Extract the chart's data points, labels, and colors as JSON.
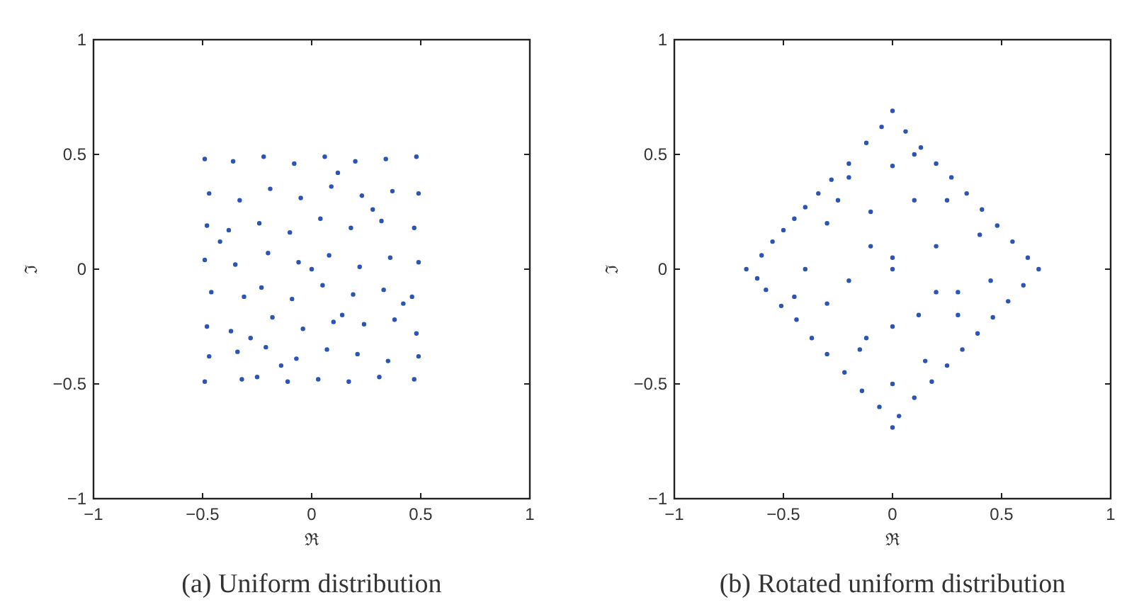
{
  "chart_data": [
    {
      "type": "scatter",
      "title": "(a) Uniform distribution",
      "xlabel": "ℜ",
      "ylabel": "ℑ",
      "marker": "circle",
      "grid": false,
      "xlim": [
        -1,
        1
      ],
      "ylim": [
        -1,
        1
      ],
      "xticks": [
        -1,
        -0.5,
        0,
        0.5,
        1
      ],
      "yticks": [
        -1,
        -0.5,
        0,
        0.5,
        1
      ],
      "series": [
        {
          "color": "#2b55b5",
          "x": [
            -0.49,
            -0.47,
            -0.48,
            -0.49,
            -0.46,
            -0.48,
            -0.47,
            -0.49,
            -0.36,
            -0.33,
            -0.38,
            -0.35,
            -0.31,
            -0.37,
            -0.34,
            -0.32,
            -0.22,
            -0.19,
            -0.24,
            -0.2,
            -0.23,
            -0.18,
            -0.21,
            -0.25,
            -0.08,
            -0.05,
            -0.1,
            -0.06,
            -0.09,
            -0.04,
            -0.07,
            -0.11,
            0.06,
            0.09,
            0.04,
            0.08,
            0.05,
            0.1,
            0.07,
            0.03,
            0.2,
            0.23,
            0.18,
            0.22,
            0.19,
            0.24,
            0.21,
            0.17,
            0.34,
            0.37,
            0.32,
            0.36,
            0.33,
            0.38,
            0.35,
            0.31,
            0.48,
            0.49,
            0.47,
            0.49,
            0.46,
            0.48,
            0.49,
            0.47,
            0.0,
            0.12,
            -0.14,
            0.28,
            -0.28,
            0.42,
            -0.42,
            0.14
          ],
          "values": [
            0.48,
            0.33,
            0.19,
            0.04,
            -0.1,
            -0.25,
            -0.38,
            -0.49,
            0.47,
            0.3,
            0.17,
            0.02,
            -0.12,
            -0.27,
            -0.36,
            -0.48,
            0.49,
            0.35,
            0.2,
            0.07,
            -0.08,
            -0.21,
            -0.34,
            -0.47,
            0.46,
            0.31,
            0.16,
            0.03,
            -0.13,
            -0.26,
            -0.39,
            -0.49,
            0.49,
            0.36,
            0.22,
            0.06,
            -0.07,
            -0.23,
            -0.35,
            -0.48,
            0.47,
            0.32,
            0.18,
            0.01,
            -0.11,
            -0.24,
            -0.37,
            -0.49,
            0.48,
            0.34,
            0.21,
            0.05,
            -0.09,
            -0.22,
            -0.4,
            -0.47,
            0.49,
            0.33,
            0.18,
            0.03,
            -0.12,
            -0.28,
            -0.38,
            -0.48,
            0.0,
            0.42,
            -0.42,
            0.26,
            -0.3,
            -0.15,
            0.12,
            -0.2
          ]
        }
      ]
    },
    {
      "type": "scatter",
      "title": "(b) Rotated uniform distribution",
      "xlabel": "ℜ",
      "ylabel": "ℑ",
      "marker": "circle",
      "grid": false,
      "xlim": [
        -1,
        1
      ],
      "ylim": [
        -1,
        1
      ],
      "xticks": [
        -1,
        -0.5,
        0,
        0.5,
        1
      ],
      "yticks": [
        -1,
        -0.5,
        0,
        0.5,
        1
      ],
      "series": [
        {
          "color": "#2b55b5",
          "x": [
            -0.67,
            -0.6,
            -0.55,
            -0.5,
            -0.45,
            -0.4,
            -0.34,
            -0.28,
            -0.2,
            -0.12,
            -0.05,
            0.0,
            0.06,
            0.13,
            0.2,
            0.27,
            0.34,
            0.41,
            0.48,
            0.55,
            0.62,
            0.67,
            0.6,
            0.53,
            0.46,
            0.39,
            0.32,
            0.25,
            0.18,
            0.1,
            0.03,
            0.0,
            -0.06,
            -0.14,
            -0.22,
            -0.3,
            -0.37,
            -0.44,
            -0.51,
            -0.58,
            -0.62,
            -0.4,
            -0.3,
            -0.2,
            -0.1,
            0.0,
            0.1,
            0.2,
            0.3,
            0.4,
            -0.3,
            -0.15,
            0.0,
            0.15,
            0.3,
            -0.2,
            0.0,
            0.2,
            -0.45,
            0.45,
            -0.1,
            0.1,
            0.0,
            -0.25,
            0.25,
            0.0,
            0.12,
            -0.12
          ],
          "values": [
            0.0,
            0.06,
            0.12,
            0.17,
            0.22,
            0.27,
            0.33,
            0.39,
            0.46,
            0.55,
            0.62,
            0.69,
            0.6,
            0.53,
            0.46,
            0.4,
            0.33,
            0.26,
            0.19,
            0.12,
            0.05,
            0.0,
            -0.07,
            -0.14,
            -0.21,
            -0.28,
            -0.35,
            -0.42,
            -0.49,
            -0.56,
            -0.64,
            -0.69,
            -0.6,
            -0.53,
            -0.45,
            -0.37,
            -0.3,
            -0.22,
            -0.16,
            -0.09,
            -0.04,
            0.0,
            0.2,
            0.4,
            0.1,
            0.45,
            0.3,
            0.1,
            -0.1,
            0.15,
            -0.15,
            -0.35,
            -0.25,
            -0.4,
            -0.2,
            -0.05,
            0.05,
            -0.1,
            -0.12,
            -0.05,
            0.25,
            0.5,
            -0.5,
            0.3,
            0.3,
            0.0,
            -0.2,
            -0.3
          ]
        }
      ]
    }
  ]
}
